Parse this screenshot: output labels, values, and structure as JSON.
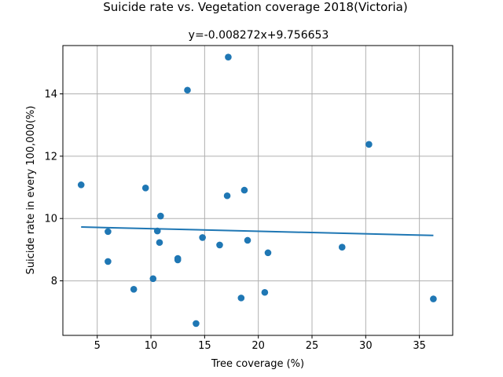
{
  "chart_data": {
    "type": "scatter",
    "title": "Suicide rate vs. Vegetation coverage 2018(Victoria)",
    "subtitle": "y=-0.008272x+9.756653",
    "xlabel": "Tree coverage (%)",
    "ylabel": "Suicide rate in every 100,000(%)",
    "xlim": [
      1.8,
      38.1
    ],
    "ylim": [
      6.25,
      15.55
    ],
    "xticks": [
      5,
      10,
      15,
      20,
      25,
      30,
      35
    ],
    "yticks": [
      8,
      10,
      12,
      14
    ],
    "xtick_labels": [
      "5",
      "10",
      "15",
      "20",
      "25",
      "30",
      "35"
    ],
    "ytick_labels": [
      "8",
      "10",
      "12",
      "14"
    ],
    "grid": true,
    "series": [
      {
        "kind": "points",
        "color": "#1f77b4",
        "x": [
          3.5,
          6.0,
          6.0,
          8.4,
          9.5,
          10.2,
          10.6,
          10.8,
          10.9,
          12.5,
          12.5,
          13.4,
          14.2,
          14.8,
          16.4,
          17.1,
          17.2,
          18.4,
          18.7,
          19.0,
          20.6,
          20.9,
          27.8,
          30.3,
          36.3
        ],
        "y": [
          11.08,
          9.58,
          8.62,
          7.73,
          10.98,
          8.07,
          9.6,
          9.23,
          10.08,
          8.72,
          8.67,
          14.12,
          6.63,
          9.39,
          9.15,
          10.73,
          15.18,
          7.45,
          10.91,
          9.3,
          7.63,
          8.9,
          9.08,
          12.38,
          7.42
        ]
      },
      {
        "kind": "regression-line",
        "color": "#1f77b4",
        "slope": -0.008272,
        "intercept": 9.756653,
        "x_range": [
          3.5,
          36.3
        ]
      }
    ]
  }
}
